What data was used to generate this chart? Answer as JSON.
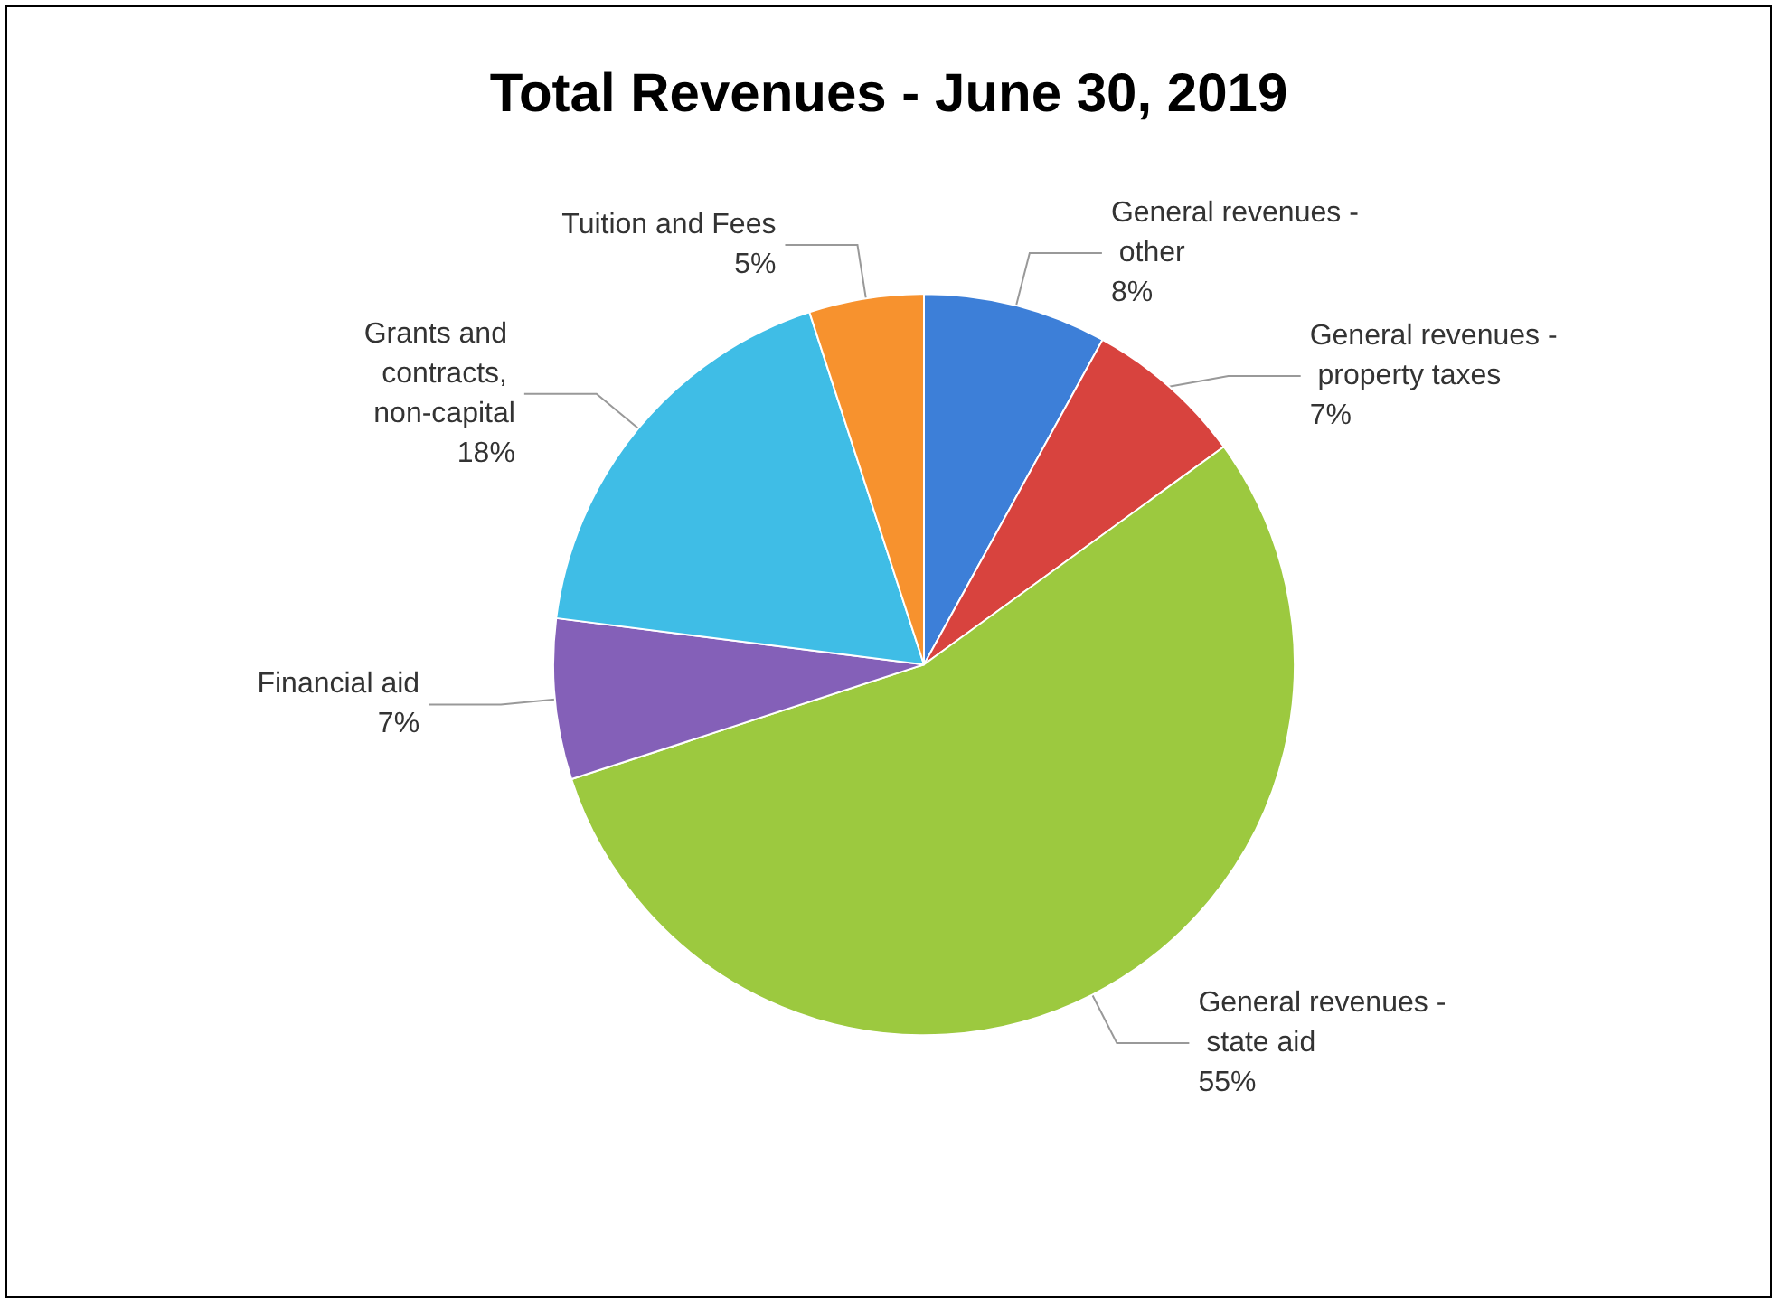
{
  "chart_data": {
    "type": "pie",
    "title": "Total Revenues - June 30, 2019",
    "categories": [
      "General revenues - other",
      "General revenues - property taxes",
      "General revenues - state aid",
      "Financial aid",
      "Grants and contracts, non-capital",
      "Tuition and Fees"
    ],
    "values": [
      8,
      7,
      55,
      7,
      18,
      5
    ],
    "value_labels": [
      "8%",
      "7%",
      "55%",
      "7%",
      "18%",
      "5%"
    ],
    "colors": [
      "#3d7fd8",
      "#d8433e",
      "#9cc93f",
      "#8460b8",
      "#3fbde6",
      "#f7922e"
    ]
  }
}
